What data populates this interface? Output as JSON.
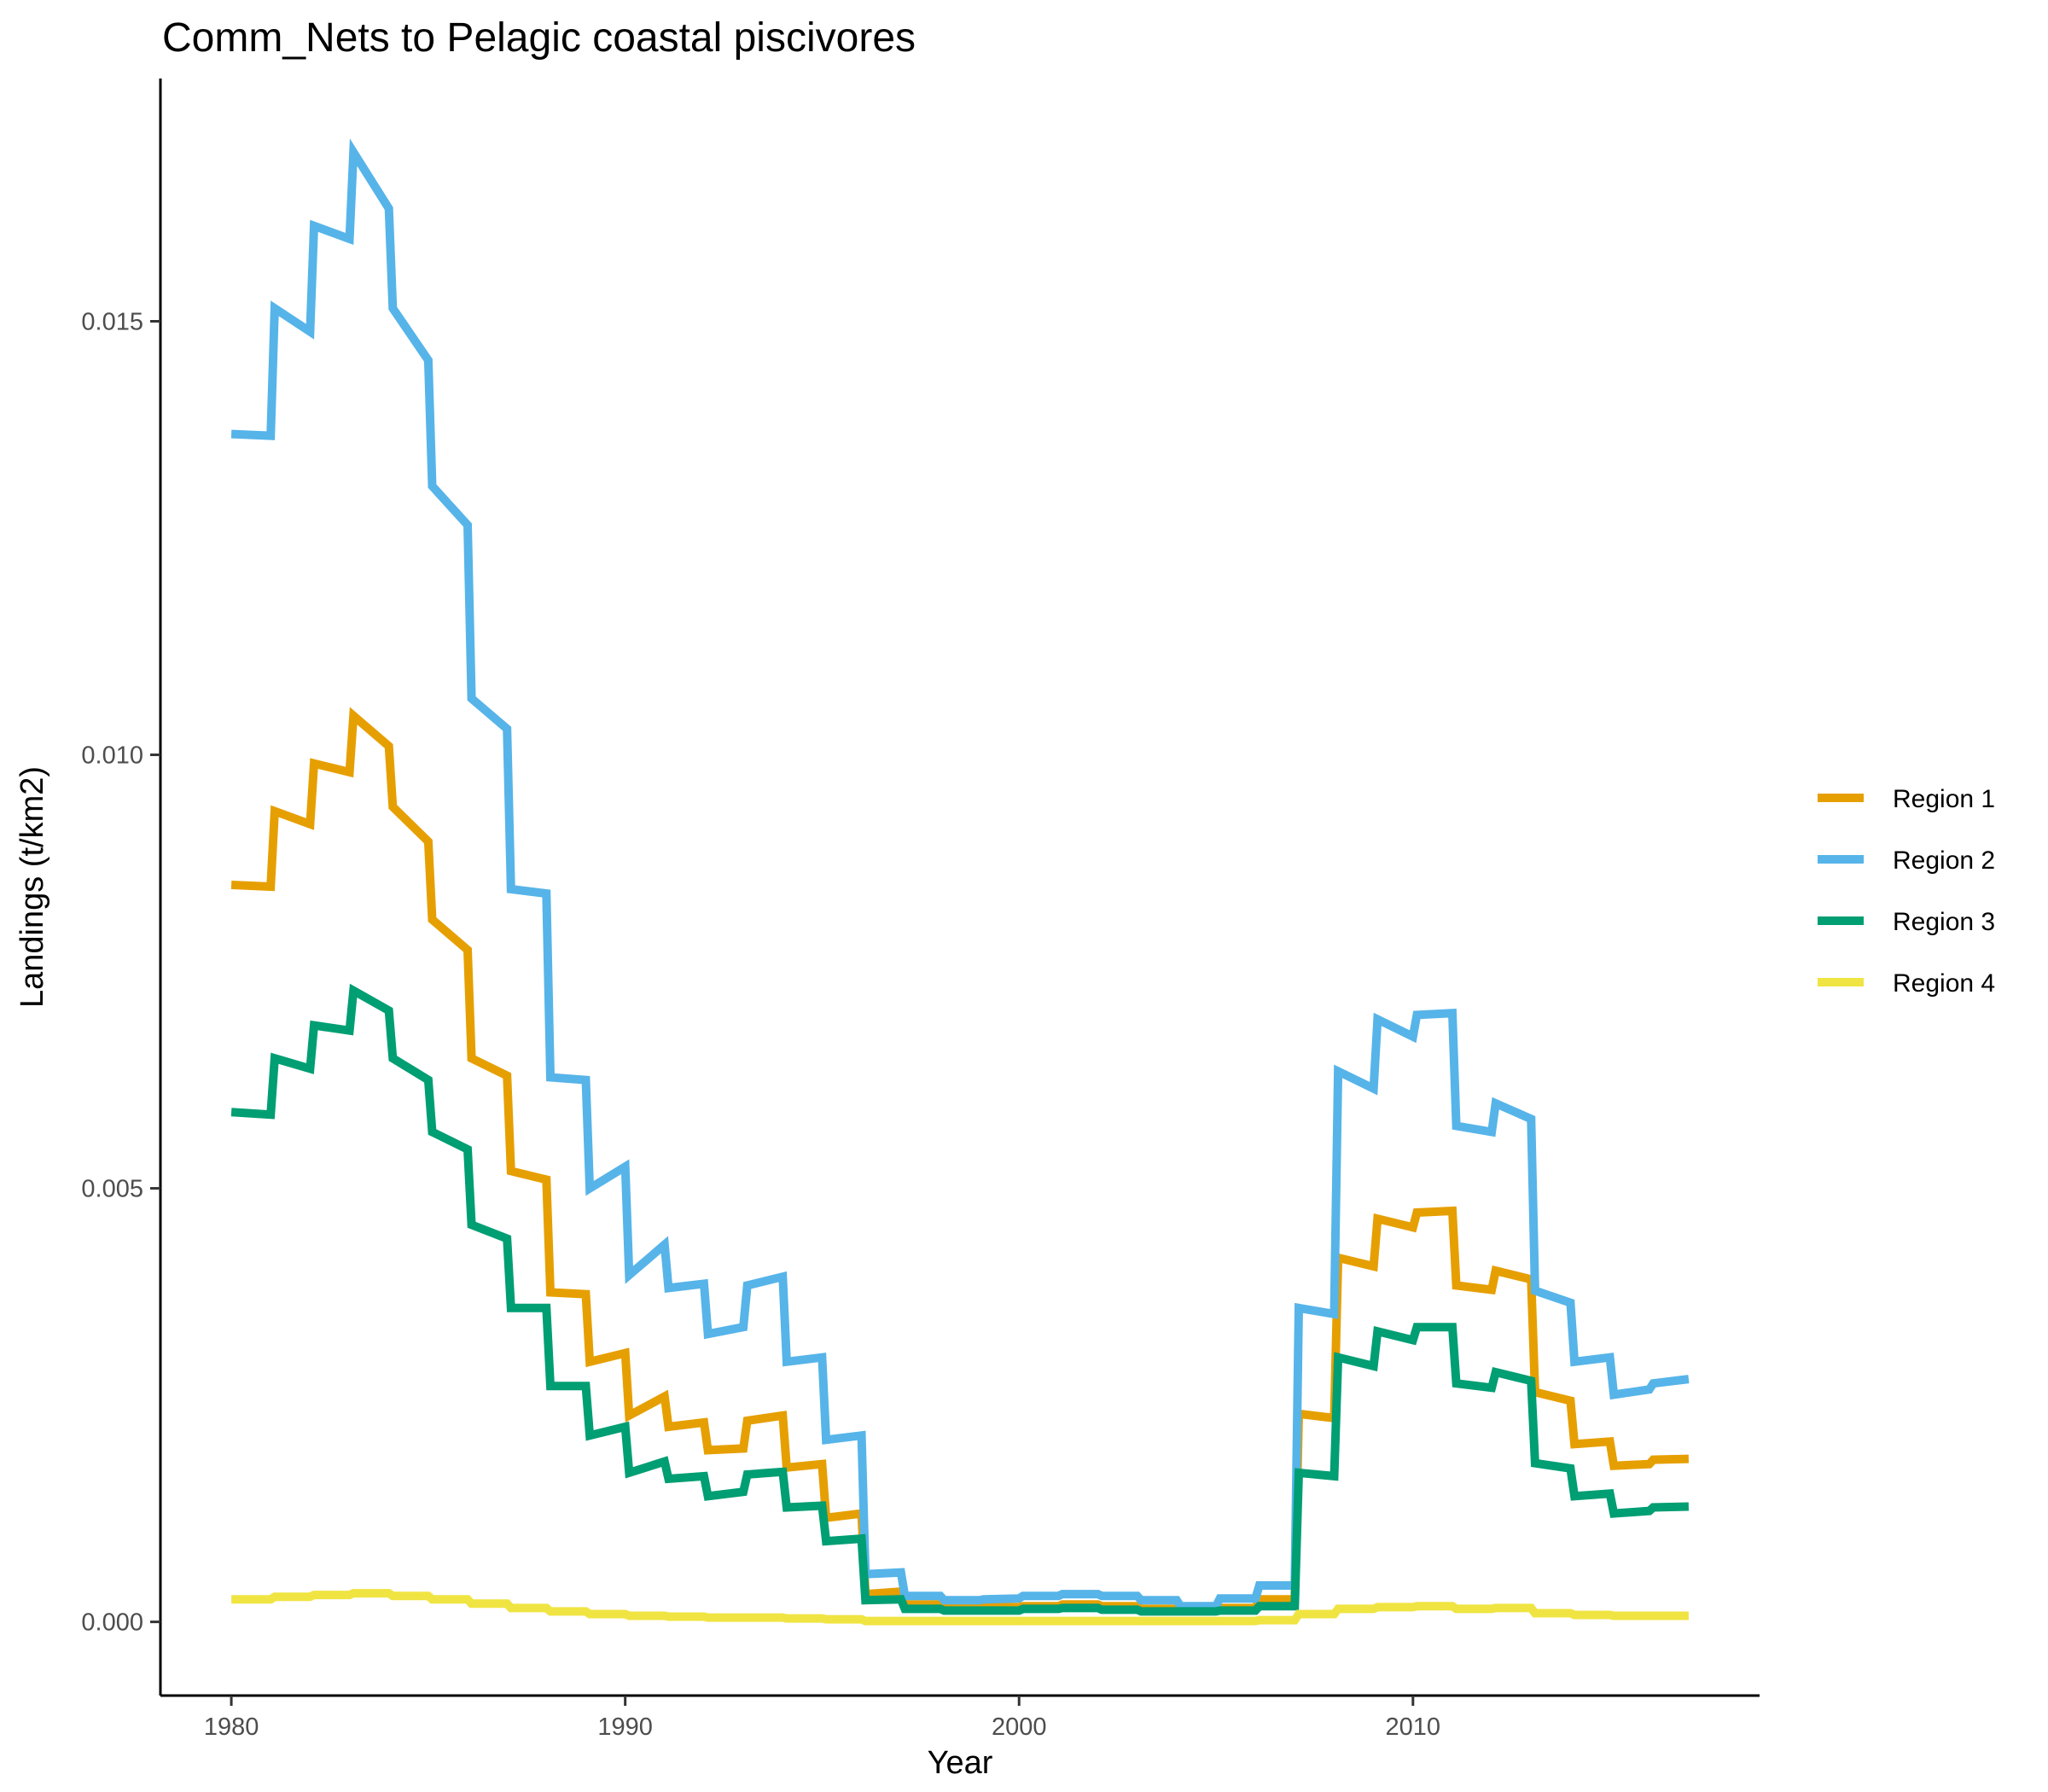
{
  "chart_data": {
    "type": "line",
    "title": "Comm_Nets to Pelagic coastal piscivores",
    "xlabel": "Year",
    "ylabel": "Landings (t/km2)",
    "xlim": [
      1978.2,
      2018.8
    ],
    "ylim": [
      -0.00085,
      0.0178
    ],
    "x_ticks": [
      1980,
      1990,
      2000,
      2010
    ],
    "x_tick_labels": [
      "1980",
      "1990",
      "2000",
      "2010"
    ],
    "y_ticks": [
      0.0,
      0.005,
      0.01,
      0.015
    ],
    "y_tick_labels": [
      "0.000",
      "0.005",
      "0.010",
      "0.015"
    ],
    "grid": false,
    "legend_position": "right",
    "series": [
      {
        "name": "Region 1",
        "color": "#E69F00",
        "x": [
          1980.0,
          1981.0,
          1981.1,
          1982.0,
          1982.1,
          1983.0,
          1983.1,
          1984.0,
          1984.1,
          1985.0,
          1985.1,
          1986.0,
          1986.1,
          1987.0,
          1987.1,
          1988.0,
          1988.1,
          1989.0,
          1989.1,
          1990.0,
          1990.1,
          1991.0,
          1991.1,
          1992.0,
          1992.1,
          1993.0,
          1993.1,
          1994.0,
          1994.1,
          1995.0,
          1995.1,
          1996.0,
          1996.1,
          1997.0,
          1997.1,
          1998.0,
          1998.1,
          1999.0,
          1999.1,
          2000.0,
          2000.1,
          2001.0,
          2001.1,
          2002.0,
          2002.1,
          2003.0,
          2003.1,
          2004.0,
          2004.1,
          2005.0,
          2005.1,
          2006.0,
          2006.1,
          2007.0,
          2007.1,
          2008.0,
          2008.1,
          2009.0,
          2009.1,
          2010.0,
          2010.1,
          2011.0,
          2011.1,
          2012.0,
          2012.1,
          2013.0,
          2013.1,
          2014.0,
          2014.1,
          2015.0,
          2015.1,
          2016.0,
          2016.1,
          2017.0
        ],
        "y": [
          0.0085,
          0.00848,
          0.00935,
          0.0092,
          0.0099,
          0.0098,
          0.01045,
          0.0101,
          0.0094,
          0.009,
          0.0081,
          0.00775,
          0.0065,
          0.0063,
          0.0052,
          0.0051,
          0.0038,
          0.00378,
          0.003,
          0.0031,
          0.00238,
          0.0026,
          0.00225,
          0.0023,
          0.00198,
          0.002,
          0.00232,
          0.00238,
          0.00178,
          0.00182,
          0.0012,
          0.00125,
          0.00032,
          0.00035,
          0.0002,
          0.0002,
          0.00016,
          0.00016,
          0.00017,
          0.00017,
          0.00018,
          0.00018,
          0.0002,
          0.0002,
          0.00018,
          0.00018,
          0.00015,
          0.00015,
          0.00014,
          0.00014,
          0.00016,
          0.00016,
          0.00026,
          0.00026,
          0.0024,
          0.00235,
          0.0042,
          0.0041,
          0.00465,
          0.00455,
          0.00472,
          0.00474,
          0.00388,
          0.00383,
          0.00405,
          0.00395,
          0.00265,
          0.00255,
          0.00205,
          0.00208,
          0.0018,
          0.00182,
          0.00187,
          0.00188
        ]
      },
      {
        "name": "Region 2",
        "color": "#56B4E9",
        "x": [
          1980.0,
          1981.0,
          1981.1,
          1982.0,
          1982.1,
          1983.0,
          1983.1,
          1984.0,
          1984.1,
          1985.0,
          1985.1,
          1986.0,
          1986.1,
          1987.0,
          1987.1,
          1988.0,
          1988.1,
          1989.0,
          1989.1,
          1990.0,
          1990.1,
          1991.0,
          1991.1,
          1992.0,
          1992.1,
          1993.0,
          1993.1,
          1994.0,
          1994.1,
          1995.0,
          1995.1,
          1996.0,
          1996.1,
          1997.0,
          1997.1,
          1998.0,
          1998.1,
          1999.0,
          1999.1,
          2000.0,
          2000.1,
          2001.0,
          2001.1,
          2002.0,
          2002.1,
          2003.0,
          2003.1,
          2004.0,
          2004.1,
          2005.0,
          2005.1,
          2006.0,
          2006.1,
          2007.0,
          2007.1,
          2008.0,
          2008.1,
          2009.0,
          2009.1,
          2010.0,
          2010.1,
          2011.0,
          2011.1,
          2012.0,
          2012.1,
          2013.0,
          2013.1,
          2014.0,
          2014.1,
          2015.0,
          2015.1,
          2016.0,
          2016.1,
          2017.0
        ],
        "y": [
          0.0137,
          0.01368,
          0.01515,
          0.01488,
          0.0161,
          0.01595,
          0.01695,
          0.0163,
          0.01515,
          0.01455,
          0.0131,
          0.01265,
          0.01065,
          0.0103,
          0.00845,
          0.0084,
          0.00628,
          0.00625,
          0.005,
          0.00525,
          0.004,
          0.00435,
          0.00385,
          0.0039,
          0.00332,
          0.0034,
          0.00388,
          0.00398,
          0.003,
          0.00305,
          0.0021,
          0.00215,
          0.00055,
          0.00057,
          0.0003,
          0.0003,
          0.00025,
          0.00025,
          0.00026,
          0.00027,
          0.0003,
          0.0003,
          0.00032,
          0.00032,
          0.0003,
          0.0003,
          0.00025,
          0.00025,
          0.00018,
          0.00018,
          0.00027,
          0.00027,
          0.00042,
          0.00042,
          0.00362,
          0.00355,
          0.00635,
          0.00615,
          0.00695,
          0.00675,
          0.007,
          0.00702,
          0.00572,
          0.00565,
          0.00598,
          0.0058,
          0.00382,
          0.00368,
          0.003,
          0.00305,
          0.00262,
          0.00268,
          0.00275,
          0.0028
        ]
      },
      {
        "name": "Region 3",
        "color": "#009E73",
        "x": [
          1980.0,
          1981.0,
          1981.1,
          1982.0,
          1982.1,
          1983.0,
          1983.1,
          1984.0,
          1984.1,
          1985.0,
          1985.1,
          1986.0,
          1986.1,
          1987.0,
          1987.1,
          1988.0,
          1988.1,
          1989.0,
          1989.1,
          1990.0,
          1990.1,
          1991.0,
          1991.1,
          1992.0,
          1992.1,
          1993.0,
          1993.1,
          1994.0,
          1994.1,
          1995.0,
          1995.1,
          1996.0,
          1996.1,
          1997.0,
          1997.1,
          1998.0,
          1998.1,
          1999.0,
          1999.1,
          2000.0,
          2000.1,
          2001.0,
          2001.1,
          2002.0,
          2002.1,
          2003.0,
          2003.1,
          2004.0,
          2004.1,
          2005.0,
          2005.1,
          2006.0,
          2006.1,
          2007.0,
          2007.1,
          2008.0,
          2008.1,
          2009.0,
          2009.1,
          2010.0,
          2010.1,
          2011.0,
          2011.1,
          2012.0,
          2012.1,
          2013.0,
          2013.1,
          2014.0,
          2014.1,
          2015.0,
          2015.1,
          2016.0,
          2016.1,
          2017.0
        ],
        "y": [
          0.00588,
          0.00585,
          0.0065,
          0.00638,
          0.00688,
          0.00682,
          0.00728,
          0.00705,
          0.0065,
          0.00625,
          0.00565,
          0.00545,
          0.00458,
          0.00442,
          0.00362,
          0.00362,
          0.00272,
          0.00272,
          0.00215,
          0.00225,
          0.00172,
          0.00185,
          0.00165,
          0.00168,
          0.00145,
          0.0015,
          0.0017,
          0.00173,
          0.00132,
          0.00134,
          0.00093,
          0.00096,
          0.00025,
          0.00026,
          0.00015,
          0.00015,
          0.00013,
          0.00013,
          0.00013,
          0.00013,
          0.00015,
          0.00015,
          0.00016,
          0.00016,
          0.00014,
          0.00014,
          0.00012,
          0.00012,
          0.00012,
          0.00012,
          0.00013,
          0.00013,
          0.00018,
          0.00018,
          0.00172,
          0.00168,
          0.00305,
          0.00295,
          0.00335,
          0.00325,
          0.0034,
          0.0034,
          0.00275,
          0.0027,
          0.00288,
          0.00278,
          0.00183,
          0.00177,
          0.00145,
          0.00148,
          0.00125,
          0.00128,
          0.00132,
          0.00133
        ]
      },
      {
        "name": "Region 4",
        "color": "#F0E442",
        "x": [
          1980.0,
          1981.0,
          1981.1,
          1982.0,
          1982.1,
          1983.0,
          1983.1,
          1984.0,
          1984.1,
          1985.0,
          1985.1,
          1986.0,
          1986.1,
          1987.0,
          1987.1,
          1988.0,
          1988.1,
          1989.0,
          1989.1,
          1990.0,
          1990.1,
          1991.0,
          1991.1,
          1992.0,
          1992.1,
          1993.0,
          1993.1,
          1994.0,
          1994.1,
          1995.0,
          1995.1,
          1996.0,
          1996.1,
          1997.0,
          1997.1,
          1998.0,
          1998.1,
          1999.0,
          1999.1,
          2000.0,
          2000.1,
          2001.0,
          2001.1,
          2002.0,
          2002.1,
          2003.0,
          2003.1,
          2004.0,
          2004.1,
          2005.0,
          2005.1,
          2006.0,
          2006.1,
          2007.0,
          2007.1,
          2008.0,
          2008.1,
          2009.0,
          2009.1,
          2010.0,
          2010.1,
          2011.0,
          2011.1,
          2012.0,
          2012.1,
          2013.0,
          2013.1,
          2014.0,
          2014.1,
          2015.0,
          2015.1,
          2016.0,
          2016.1,
          2017.0
        ],
        "y": [
          0.00026,
          0.00026,
          0.00029,
          0.00029,
          0.00031,
          0.00031,
          0.00033,
          0.00033,
          0.0003,
          0.0003,
          0.00026,
          0.00026,
          0.00021,
          0.00021,
          0.00016,
          0.00016,
          0.00012,
          0.00012,
          9e-05,
          9e-05,
          7e-05,
          7e-05,
          6e-05,
          6e-05,
          5e-05,
          5e-05,
          5e-05,
          5e-05,
          4e-05,
          4e-05,
          3e-05,
          3e-05,
          1e-05,
          1e-05,
          1e-05,
          1e-05,
          1e-05,
          1e-05,
          1e-05,
          1e-05,
          1e-05,
          1e-05,
          1e-05,
          1e-05,
          1e-05,
          1e-05,
          1e-05,
          1e-05,
          1e-05,
          1e-05,
          1e-05,
          1e-05,
          2e-05,
          2e-05,
          9e-05,
          9e-05,
          0.00015,
          0.00015,
          0.00017,
          0.00017,
          0.00018,
          0.00018,
          0.00015,
          0.00015,
          0.00016,
          0.00016,
          0.0001,
          0.0001,
          8e-05,
          8e-05,
          7e-05,
          7e-05,
          7e-05,
          7e-05
        ]
      }
    ]
  }
}
